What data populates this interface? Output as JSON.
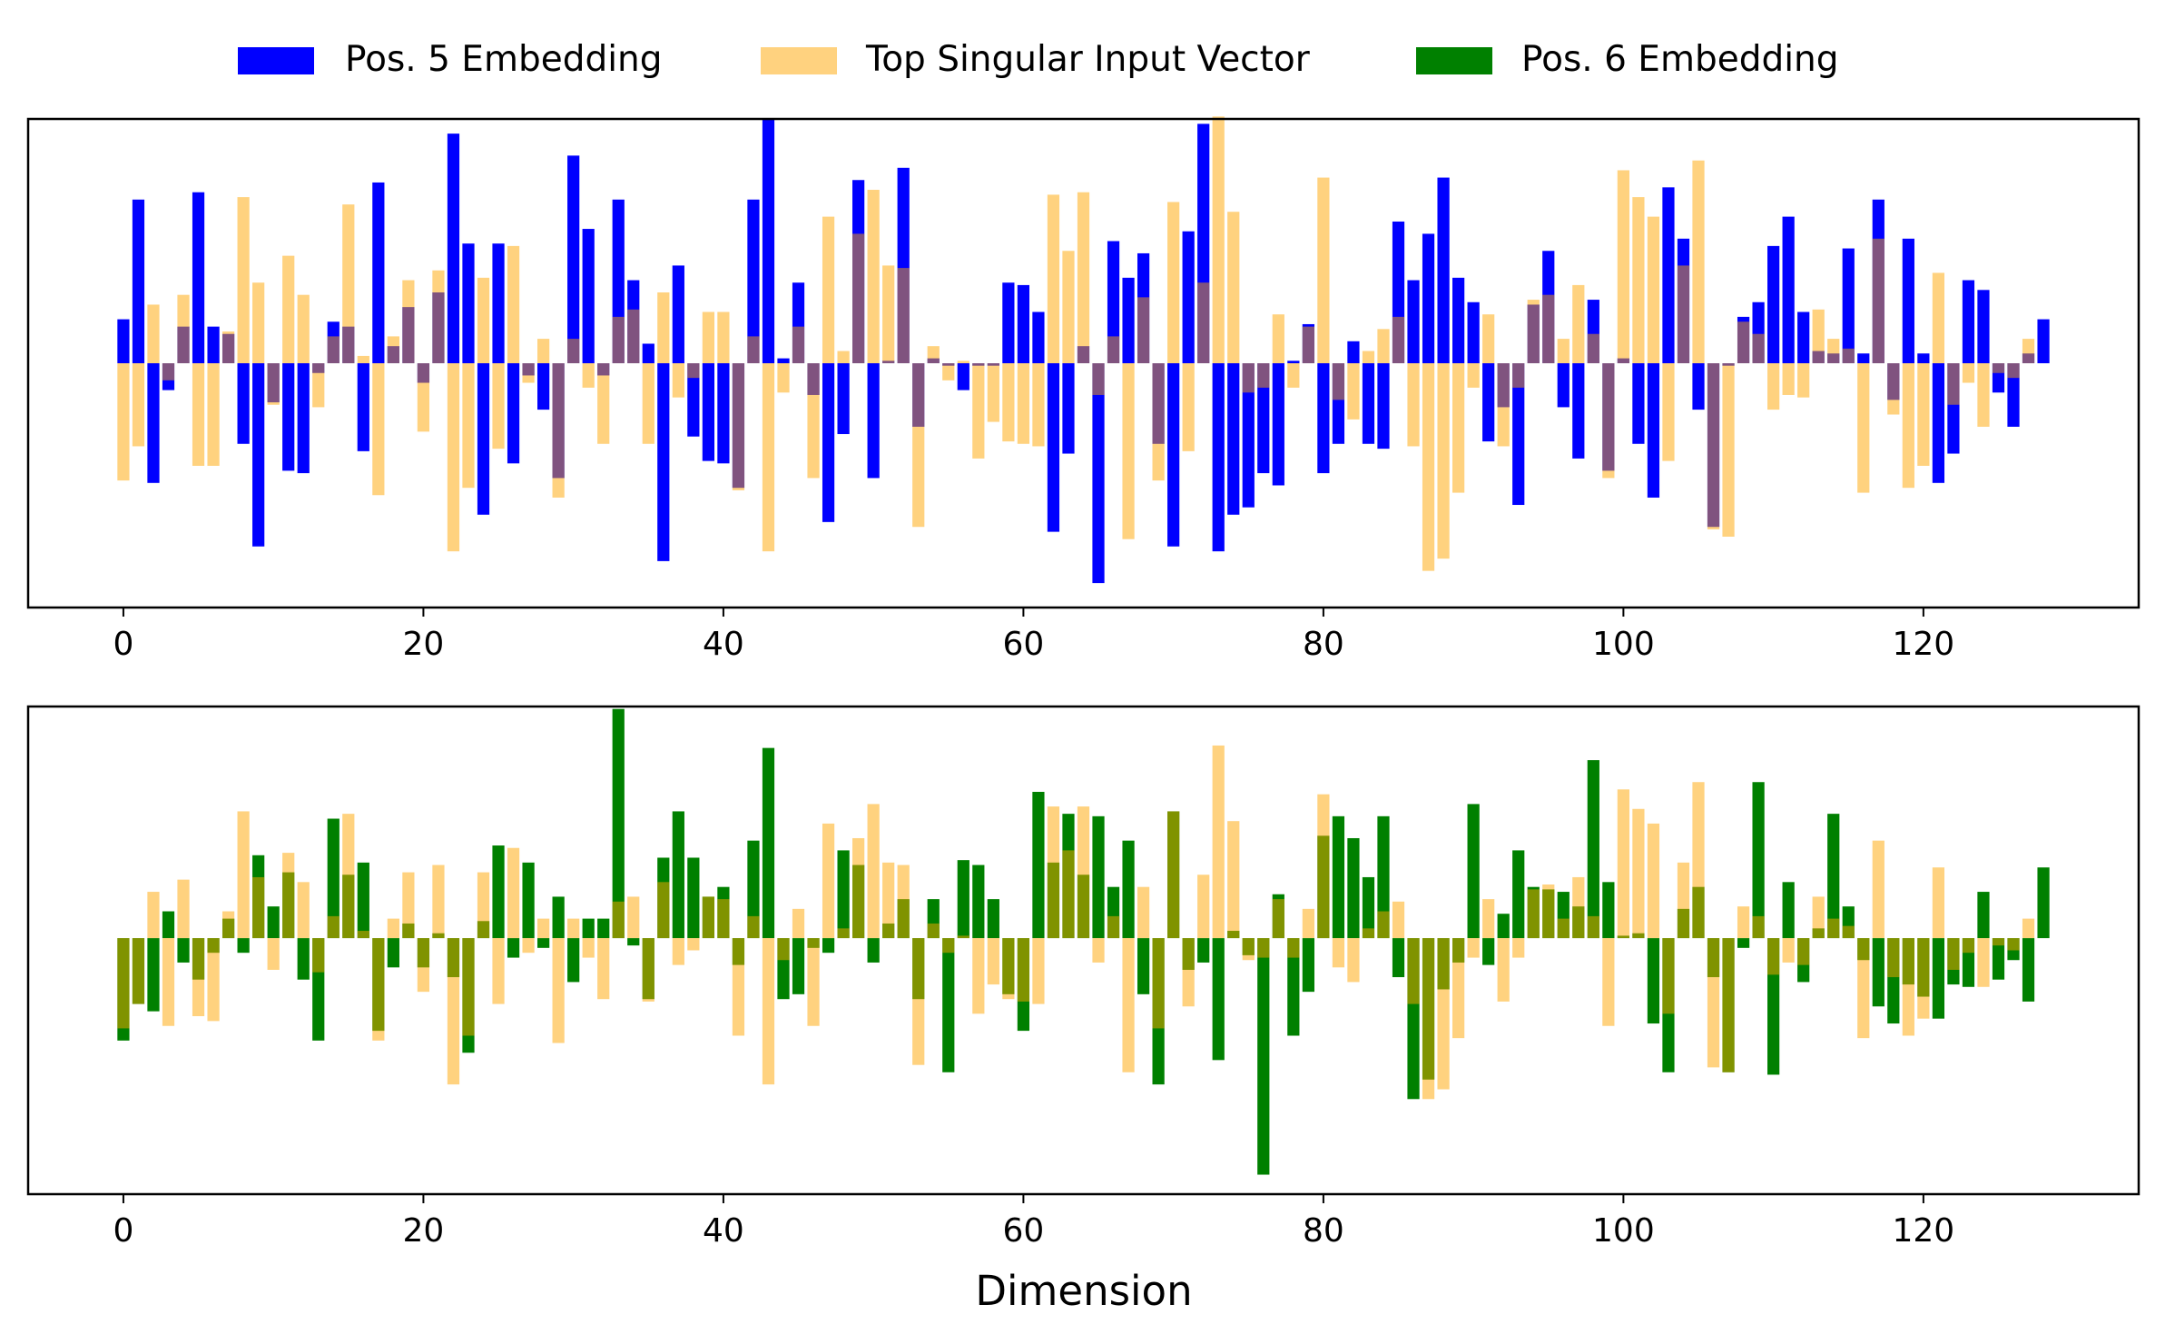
{
  "chart_data": [
    {
      "type": "bar",
      "panel": "top",
      "xlabel": "",
      "ylabel": "",
      "xlim": [
        -6.35,
        134.35
      ],
      "ylim": [
        -1.0,
        1.0
      ],
      "xticks": [
        0,
        20,
        40,
        60,
        80,
        100,
        120
      ],
      "grid": false,
      "overlay_alpha": 0.5,
      "series": [
        {
          "name": "Pos. 5 Embedding",
          "color": "#0000ff",
          "values": [
            0.18,
            0.67,
            -0.49,
            -0.11,
            0.15,
            0.7,
            0.15,
            0.12,
            -0.33,
            -0.75,
            -0.16,
            -0.44,
            -0.45,
            -0.04,
            0.17,
            0.15,
            -0.36,
            0.74,
            0.07,
            0.23,
            -0.08,
            0.29,
            0.94,
            0.49,
            -0.62,
            0.49,
            -0.41,
            -0.05,
            -0.19,
            -0.47,
            0.85,
            0.55,
            -0.05,
            0.67,
            0.34,
            0.08,
            -0.81,
            0.4,
            -0.3,
            -0.4,
            -0.41,
            -0.51,
            0.67,
            1.0,
            0.02,
            0.33,
            -0.13,
            -0.65,
            -0.29,
            0.75,
            -0.47,
            0.01,
            0.8,
            -0.26,
            0.02,
            -0.01,
            -0.11,
            -0.01,
            -0.01,
            0.33,
            0.32,
            0.21,
            -0.69,
            -0.37,
            0.07,
            -0.9,
            0.5,
            0.35,
            0.45,
            -0.33,
            -0.75,
            0.54,
            0.98,
            -0.77,
            -0.62,
            -0.59,
            -0.45,
            -0.5,
            0.01,
            0.16,
            -0.45,
            -0.33,
            0.09,
            -0.33,
            -0.35,
            0.58,
            0.34,
            0.53,
            0.76,
            0.35,
            0.25,
            -0.32,
            -0.18,
            -0.58,
            0.24,
            0.46,
            -0.18,
            -0.39,
            0.26,
            -0.44,
            0.02,
            -0.33,
            -0.55,
            0.72,
            0.51,
            -0.19,
            -0.67,
            -0.01,
            0.19,
            0.25,
            0.48,
            0.6,
            0.21,
            0.05,
            0.04,
            0.47,
            0.04,
            0.67,
            -0.15,
            0.51,
            0.04,
            -0.49,
            -0.37,
            0.34,
            0.3,
            -0.12,
            -0.26,
            0.04,
            0.18
          ]
        },
        {
          "name": "Top Singular Input Vector",
          "color": "#ffa500",
          "values": [
            -0.48,
            -0.34,
            0.24,
            -0.07,
            0.28,
            -0.42,
            -0.42,
            0.13,
            0.68,
            0.33,
            -0.17,
            0.44,
            0.28,
            -0.18,
            0.11,
            0.65,
            0.03,
            -0.54,
            0.11,
            0.34,
            -0.28,
            0.38,
            -0.77,
            -0.51,
            0.35,
            -0.35,
            0.48,
            -0.08,
            0.1,
            -0.55,
            0.1,
            -0.1,
            -0.33,
            0.19,
            0.22,
            -0.33,
            0.29,
            -0.14,
            -0.06,
            0.21,
            0.21,
            -0.52,
            0.11,
            -0.77,
            -0.12,
            0.15,
            -0.47,
            0.6,
            0.05,
            0.53,
            0.71,
            0.4,
            0.39,
            -0.67,
            0.07,
            -0.07,
            0.01,
            -0.39,
            -0.24,
            -0.32,
            -0.33,
            -0.34,
            0.69,
            0.46,
            0.7,
            -0.13,
            0.11,
            -0.72,
            0.27,
            -0.48,
            0.66,
            -0.36,
            0.33,
            1.01,
            0.62,
            -0.12,
            -0.1,
            0.2,
            -0.1,
            0.15,
            0.76,
            -0.15,
            -0.23,
            0.05,
            0.14,
            0.19,
            -0.34,
            -0.85,
            -0.8,
            -0.53,
            -0.1,
            0.2,
            -0.34,
            -0.1,
            0.26,
            0.28,
            0.1,
            0.32,
            0.12,
            -0.47,
            0.79,
            0.68,
            0.6,
            -0.4,
            0.4,
            0.83,
            -0.68,
            -0.71,
            0.17,
            0.12,
            -0.19,
            -0.13,
            -0.14,
            0.22,
            0.1,
            0.06,
            -0.53,
            0.51,
            -0.21,
            -0.51,
            -0.42,
            0.37,
            -0.17,
            -0.08,
            -0.26,
            -0.04,
            -0.06,
            0.1
          ]
        }
      ]
    },
    {
      "type": "bar",
      "panel": "bottom",
      "xlabel": "Dimension",
      "ylabel": "",
      "xlim": [
        -6.35,
        134.35
      ],
      "ylim": [
        -1.05,
        0.95
      ],
      "xticks": [
        0,
        20,
        40,
        60,
        80,
        100,
        120
      ],
      "grid": false,
      "overlay_alpha": 0.5,
      "series": [
        {
          "name": "Pos. 6 Embedding",
          "color": "#008000",
          "values": [
            -0.42,
            -0.27,
            -0.3,
            0.11,
            -0.1,
            -0.17,
            -0.06,
            0.08,
            -0.06,
            0.34,
            0.13,
            0.27,
            -0.17,
            -0.42,
            0.49,
            0.26,
            0.31,
            -0.38,
            -0.12,
            0.06,
            -0.12,
            0.02,
            -0.16,
            -0.47,
            0.07,
            0.38,
            -0.08,
            0.31,
            -0.04,
            0.17,
            -0.18,
            0.08,
            0.08,
            0.94,
            -0.03,
            -0.25,
            0.33,
            0.52,
            0.33,
            0.17,
            0.21,
            -0.11,
            0.4,
            0.78,
            -0.25,
            -0.23,
            -0.04,
            -0.06,
            0.36,
            0.3,
            -0.1,
            0.06,
            0.16,
            -0.25,
            0.16,
            -0.55,
            0.32,
            0.3,
            0.16,
            -0.23,
            -0.38,
            0.6,
            0.31,
            0.51,
            0.26,
            0.5,
            0.21,
            0.4,
            -0.23,
            -0.6,
            0.52,
            -0.13,
            -0.1,
            -0.5,
            0.03,
            -0.07,
            -0.97,
            0.18,
            -0.4,
            -0.22,
            0.42,
            0.5,
            0.41,
            0.25,
            0.5,
            -0.16,
            -0.66,
            -0.58,
            -0.21,
            -0.1,
            0.55,
            -0.11,
            0.1,
            0.36,
            0.21,
            0.2,
            0.19,
            0.13,
            0.73,
            0.23,
            0.01,
            0.02,
            -0.35,
            -0.55,
            0.12,
            0.21,
            -0.16,
            -0.55,
            -0.04,
            0.64,
            -0.56,
            0.23,
            -0.18,
            0.04,
            0.51,
            0.13,
            -0.09,
            -0.28,
            -0.35,
            -0.19,
            -0.24,
            -0.33,
            -0.19,
            -0.2,
            0.19,
            -0.17,
            -0.09,
            -0.26,
            0.29
          ]
        },
        {
          "name": "Top Singular Input Vector",
          "color": "#ffa500",
          "values": [
            -0.37,
            -0.27,
            0.19,
            -0.36,
            0.24,
            -0.32,
            -0.34,
            0.11,
            0.52,
            0.25,
            -0.13,
            0.35,
            0.23,
            -0.14,
            0.09,
            0.51,
            0.03,
            -0.42,
            0.08,
            0.27,
            -0.22,
            0.3,
            -0.6,
            -0.4,
            0.27,
            -0.27,
            0.37,
            -0.06,
            0.08,
            -0.43,
            0.08,
            -0.08,
            -0.25,
            0.15,
            0.17,
            -0.26,
            0.23,
            -0.11,
            -0.05,
            0.17,
            0.16,
            -0.4,
            0.09,
            -0.6,
            -0.09,
            0.12,
            -0.36,
            0.47,
            0.04,
            0.41,
            0.55,
            0.31,
            0.3,
            -0.52,
            0.06,
            -0.06,
            0.01,
            -0.31,
            -0.19,
            -0.25,
            -0.26,
            -0.27,
            0.54,
            0.36,
            0.54,
            -0.1,
            0.09,
            -0.55,
            0.21,
            -0.37,
            0.52,
            -0.28,
            0.26,
            0.79,
            0.48,
            -0.09,
            -0.08,
            0.16,
            -0.08,
            0.12,
            0.59,
            -0.12,
            -0.18,
            0.04,
            0.11,
            0.15,
            -0.27,
            -0.66,
            -0.62,
            -0.41,
            -0.08,
            0.16,
            -0.26,
            -0.08,
            0.2,
            0.22,
            0.08,
            0.25,
            0.09,
            -0.36,
            0.61,
            0.53,
            0.47,
            -0.31,
            0.31,
            0.64,
            -0.53,
            -0.55,
            0.13,
            0.09,
            -0.15,
            -0.1,
            -0.11,
            0.17,
            0.08,
            0.05,
            -0.41,
            0.4,
            -0.16,
            -0.4,
            -0.33,
            0.29,
            -0.13,
            -0.06,
            -0.2,
            -0.03,
            -0.05,
            0.08
          ]
        }
      ]
    }
  ],
  "legend": {
    "placement": "top-center",
    "entries": [
      {
        "label": "Pos. 5 Embedding",
        "color": "#0000ff"
      },
      {
        "label": "Top Singular Input Vector",
        "color": "#ffa500",
        "alpha": 0.5
      },
      {
        "label": "Pos. 6 Embedding",
        "color": "#008000"
      }
    ]
  }
}
